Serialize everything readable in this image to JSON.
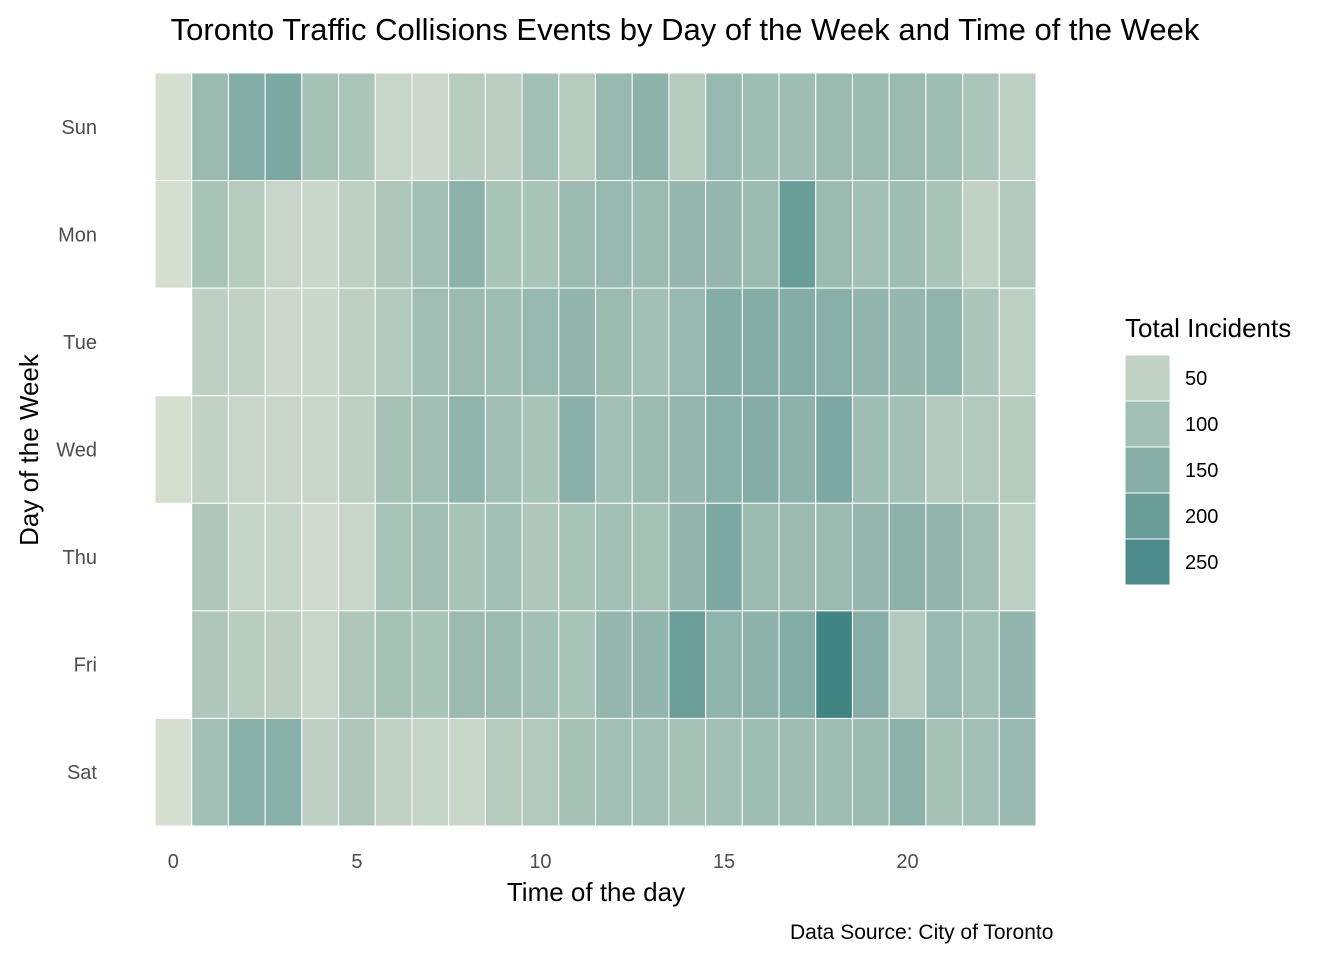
{
  "chart_data": {
    "type": "heatmap",
    "title": "Toronto Traffic Collisions Events by Day of the Week and Time of the Week",
    "xlabel": "Time of the day",
    "ylabel": "Day of the Week",
    "caption": "Data Source: City of Toronto",
    "x": [
      0,
      1,
      2,
      3,
      4,
      5,
      6,
      7,
      8,
      9,
      10,
      11,
      12,
      13,
      14,
      15,
      16,
      17,
      18,
      19,
      20,
      21,
      22,
      23
    ],
    "x_ticks": [
      0,
      5,
      10,
      15,
      20
    ],
    "x_tick_labels": [
      "0",
      "5",
      "10",
      "15",
      "20"
    ],
    "xlim": [
      -0.5,
      23.5
    ],
    "y_categories": [
      "Sun",
      "Mon",
      "Tue",
      "Wed",
      "Thu",
      "Fri",
      "Sat"
    ],
    "values": [
      [
        15,
        115,
        155,
        165,
        95,
        85,
        35,
        30,
        65,
        60,
        100,
        70,
        120,
        140,
        70,
        120,
        110,
        110,
        115,
        115,
        115,
        110,
        85,
        55
      ],
      [
        15,
        90,
        70,
        40,
        35,
        55,
        80,
        100,
        140,
        90,
        90,
        115,
        120,
        115,
        125,
        125,
        115,
        200,
        115,
        100,
        110,
        90,
        50,
        75
      ],
      [
        null,
        55,
        50,
        30,
        35,
        55,
        75,
        105,
        115,
        110,
        120,
        130,
        115,
        100,
        120,
        155,
        155,
        155,
        145,
        130,
        125,
        135,
        85,
        55
      ],
      [
        15,
        50,
        40,
        35,
        35,
        55,
        95,
        105,
        135,
        105,
        90,
        145,
        100,
        115,
        125,
        145,
        155,
        140,
        165,
        110,
        100,
        75,
        75,
        70
      ],
      [
        null,
        80,
        45,
        45,
        25,
        40,
        90,
        105,
        90,
        100,
        80,
        90,
        100,
        95,
        130,
        165,
        115,
        115,
        115,
        125,
        140,
        130,
        105,
        55
      ],
      [
        null,
        80,
        65,
        60,
        40,
        80,
        95,
        90,
        115,
        115,
        100,
        90,
        125,
        130,
        195,
        135,
        140,
        155,
        270,
        150,
        75,
        120,
        100,
        130
      ],
      [
        15,
        100,
        145,
        145,
        55,
        80,
        50,
        45,
        35,
        70,
        75,
        95,
        100,
        100,
        95,
        100,
        110,
        110,
        110,
        115,
        140,
        95,
        100,
        120
      ]
    ],
    "fill_range": [
      10,
      275
    ],
    "colors": {
      "low": "#d8e0d0",
      "high": "#3d8282",
      "tile_border": "#ffffff"
    },
    "legend": {
      "title": "Total Incidents",
      "breaks": [
        50,
        100,
        150,
        200,
        250
      ],
      "labels": [
        "50",
        "100",
        "150",
        "200",
        "250"
      ],
      "position": "right"
    },
    "grid": false
  }
}
